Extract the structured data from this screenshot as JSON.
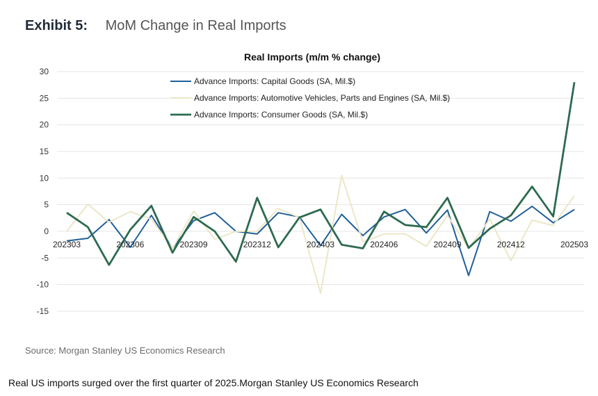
{
  "header": {
    "exhibit_label": "Exhibit 5:",
    "exhibit_title": "MoM Change in Real Imports"
  },
  "source": "Source: Morgan Stanley US Economics Research",
  "caption": "Real US imports surged over the first quarter of 2025.Morgan Stanley US Economics Research",
  "chart_data": {
    "type": "line",
    "title": "Real Imports (m/m % change)",
    "xlabel": "",
    "ylabel": "",
    "ylim": [
      -15,
      30
    ],
    "yticks": [
      30,
      25,
      20,
      15,
      10,
      5,
      0,
      -5,
      -10,
      -15
    ],
    "grid": true,
    "legend_position": "top-left",
    "x": [
      "202303",
      "202304",
      "202305",
      "202306",
      "202307",
      "202308",
      "202309",
      "202310",
      "202311",
      "202312",
      "202401",
      "202402",
      "202403",
      "202404",
      "202405",
      "202406",
      "202407",
      "202408",
      "202409",
      "202410",
      "202411",
      "202412",
      "202501",
      "202502",
      "202503"
    ],
    "xtick_labels": [
      "202303",
      "202306",
      "202309",
      "202312",
      "202403",
      "202406",
      "202409",
      "202412",
      "202503"
    ],
    "series": [
      {
        "name": "Advance Imports: Capital Goods (SA, Mil.$)",
        "color": "#1f5f9a",
        "values": [
          -1.8,
          -1.3,
          2.2,
          -3.0,
          3.0,
          -3.2,
          2.0,
          3.5,
          0.0,
          -0.5,
          3.5,
          2.7,
          -2.7,
          3.2,
          -0.8,
          2.7,
          4.1,
          -0.3,
          4.0,
          -8.3,
          3.7,
          1.9,
          4.7,
          1.6,
          4.1
        ]
      },
      {
        "name": "Advance Imports: Automotive Vehicles, Parts and Engines (SA, Mil.$)",
        "color": "#ebe7c7",
        "values": [
          0.0,
          5.1,
          1.7,
          3.7,
          2.3,
          -3.2,
          3.8,
          -1.5,
          0.0,
          0.0,
          4.3,
          2.6,
          -11.6,
          10.5,
          -2.0,
          -0.5,
          -0.5,
          -2.8,
          3.0,
          -3.2,
          2.3,
          -5.5,
          2.1,
          1.1,
          6.7
        ]
      },
      {
        "name": "Advance Imports: Consumer Goods (SA, Mil.$)",
        "color": "#2d6a4f",
        "values": [
          3.5,
          0.8,
          -6.3,
          0.3,
          4.8,
          -4.0,
          2.7,
          0.0,
          -5.7,
          6.3,
          -3.0,
          2.6,
          4.1,
          -2.5,
          -3.2,
          3.7,
          1.2,
          0.8,
          6.3,
          -3.1,
          0.5,
          3.0,
          8.4,
          2.8,
          28.0
        ]
      }
    ]
  }
}
